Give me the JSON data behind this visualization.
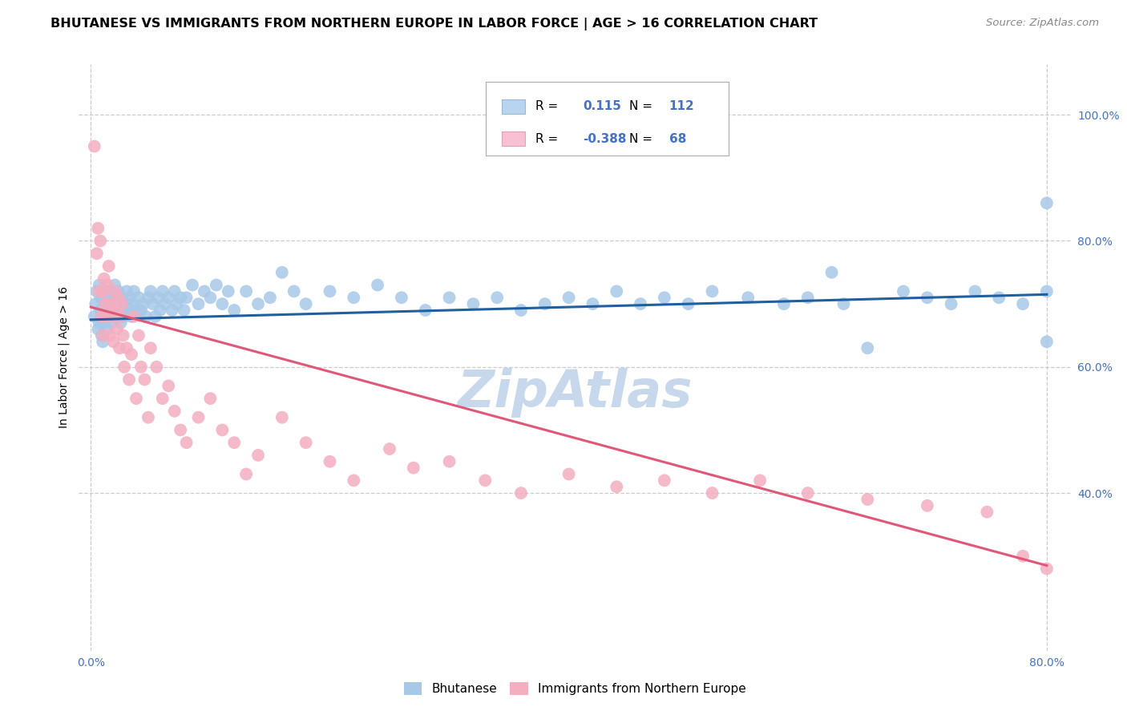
{
  "title": "BHUTANESE VS IMMIGRANTS FROM NORTHERN EUROPE IN LABOR FORCE | AGE > 16 CORRELATION CHART",
  "source": "Source: ZipAtlas.com",
  "xlabel_ticks": [
    "0.0%",
    "",
    "",
    "",
    "",
    "",
    "",
    "",
    "80.0%"
  ],
  "xlabel_vals": [
    0.0,
    0.1,
    0.2,
    0.3,
    0.4,
    0.5,
    0.6,
    0.7,
    0.8
  ],
  "ylabel_ticks": [
    "100.0%",
    "80.0%",
    "60.0%",
    "40.0%"
  ],
  "ylabel_vals": [
    1.0,
    0.8,
    0.6,
    0.4
  ],
  "xlim": [
    -0.01,
    0.82
  ],
  "ylim": [
    0.15,
    1.08
  ],
  "watermark": "ZipAtlas",
  "legend_labels": [
    "Bhutanese",
    "Immigrants from Northern Europe"
  ],
  "blue_scatter_color": "#a8c8e8",
  "pink_scatter_color": "#f4aec0",
  "blue_line_color": "#2060a0",
  "pink_line_color": "#e05878",
  "blue_box_color": "#b8d4ee",
  "pink_box_color": "#f8c0d0",
  "tick_color": "#4472c4",
  "grid_color": "#cccccc",
  "background_color": "#ffffff",
  "watermark_color": "#c8d8ec",
  "title_fontsize": 11.5,
  "source_fontsize": 9.5,
  "tick_fontsize": 10,
  "axis_label": "In Labor Force | Age > 16",
  "blue_R": "0.115",
  "blue_N": "112",
  "pink_R": "-0.388",
  "pink_N": "68",
  "bhutanese_x": [
    0.003,
    0.004,
    0.005,
    0.006,
    0.007,
    0.007,
    0.008,
    0.008,
    0.009,
    0.009,
    0.01,
    0.01,
    0.01,
    0.01,
    0.012,
    0.012,
    0.013,
    0.014,
    0.014,
    0.015,
    0.015,
    0.016,
    0.016,
    0.017,
    0.017,
    0.018,
    0.019,
    0.02,
    0.02,
    0.021,
    0.022,
    0.022,
    0.023,
    0.024,
    0.025,
    0.025,
    0.026,
    0.027,
    0.028,
    0.03,
    0.03,
    0.032,
    0.033,
    0.034,
    0.035,
    0.036,
    0.038,
    0.04,
    0.042,
    0.044,
    0.046,
    0.048,
    0.05,
    0.052,
    0.054,
    0.056,
    0.058,
    0.06,
    0.062,
    0.065,
    0.068,
    0.07,
    0.072,
    0.075,
    0.078,
    0.08,
    0.085,
    0.09,
    0.095,
    0.1,
    0.105,
    0.11,
    0.115,
    0.12,
    0.13,
    0.14,
    0.15,
    0.16,
    0.17,
    0.18,
    0.2,
    0.22,
    0.24,
    0.26,
    0.28,
    0.3,
    0.32,
    0.34,
    0.36,
    0.38,
    0.4,
    0.42,
    0.44,
    0.46,
    0.48,
    0.5,
    0.52,
    0.55,
    0.58,
    0.6,
    0.63,
    0.65,
    0.68,
    0.7,
    0.72,
    0.74,
    0.76,
    0.78,
    0.8,
    0.8,
    0.8,
    0.62
  ],
  "bhutanese_y": [
    0.68,
    0.7,
    0.72,
    0.66,
    0.67,
    0.73,
    0.69,
    0.71,
    0.65,
    0.68,
    0.71,
    0.69,
    0.67,
    0.64,
    0.7,
    0.72,
    0.68,
    0.66,
    0.71,
    0.7,
    0.68,
    0.72,
    0.69,
    0.67,
    0.71,
    0.68,
    0.7,
    0.71,
    0.73,
    0.69,
    0.7,
    0.68,
    0.72,
    0.69,
    0.7,
    0.67,
    0.71,
    0.69,
    0.68,
    0.7,
    0.72,
    0.69,
    0.71,
    0.68,
    0.7,
    0.72,
    0.69,
    0.71,
    0.69,
    0.7,
    0.68,
    0.71,
    0.72,
    0.7,
    0.68,
    0.71,
    0.69,
    0.72,
    0.7,
    0.71,
    0.69,
    0.72,
    0.7,
    0.71,
    0.69,
    0.71,
    0.73,
    0.7,
    0.72,
    0.71,
    0.73,
    0.7,
    0.72,
    0.69,
    0.72,
    0.7,
    0.71,
    0.75,
    0.72,
    0.7,
    0.72,
    0.71,
    0.73,
    0.71,
    0.69,
    0.71,
    0.7,
    0.71,
    0.69,
    0.7,
    0.71,
    0.7,
    0.72,
    0.7,
    0.71,
    0.7,
    0.72,
    0.71,
    0.7,
    0.71,
    0.7,
    0.63,
    0.72,
    0.71,
    0.7,
    0.72,
    0.71,
    0.7,
    0.86,
    0.64,
    0.72,
    0.75
  ],
  "pink_x": [
    0.003,
    0.005,
    0.006,
    0.007,
    0.008,
    0.009,
    0.01,
    0.01,
    0.011,
    0.012,
    0.013,
    0.014,
    0.015,
    0.016,
    0.017,
    0.018,
    0.019,
    0.02,
    0.02,
    0.022,
    0.023,
    0.024,
    0.025,
    0.026,
    0.027,
    0.028,
    0.03,
    0.032,
    0.034,
    0.036,
    0.038,
    0.04,
    0.042,
    0.045,
    0.048,
    0.05,
    0.055,
    0.06,
    0.065,
    0.07,
    0.075,
    0.08,
    0.09,
    0.1,
    0.11,
    0.12,
    0.13,
    0.14,
    0.16,
    0.18,
    0.2,
    0.22,
    0.25,
    0.27,
    0.3,
    0.33,
    0.36,
    0.4,
    0.44,
    0.48,
    0.52,
    0.56,
    0.6,
    0.65,
    0.7,
    0.75,
    0.78,
    0.8
  ],
  "pink_y": [
    0.95,
    0.78,
    0.82,
    0.72,
    0.8,
    0.68,
    0.72,
    0.65,
    0.74,
    0.7,
    0.68,
    0.73,
    0.76,
    0.65,
    0.7,
    0.68,
    0.64,
    0.72,
    0.69,
    0.66,
    0.71,
    0.63,
    0.68,
    0.7,
    0.65,
    0.6,
    0.63,
    0.58,
    0.62,
    0.68,
    0.55,
    0.65,
    0.6,
    0.58,
    0.52,
    0.63,
    0.6,
    0.55,
    0.57,
    0.53,
    0.5,
    0.48,
    0.52,
    0.55,
    0.5,
    0.48,
    0.43,
    0.46,
    0.52,
    0.48,
    0.45,
    0.42,
    0.47,
    0.44,
    0.45,
    0.42,
    0.4,
    0.43,
    0.41,
    0.42,
    0.4,
    0.42,
    0.4,
    0.39,
    0.38,
    0.37,
    0.3,
    0.28
  ],
  "blue_trend": [
    0.0,
    0.8
  ],
  "blue_trend_y": [
    0.675,
    0.715
  ],
  "pink_trend": [
    0.0,
    0.8
  ],
  "pink_trend_y": [
    0.695,
    0.285
  ]
}
